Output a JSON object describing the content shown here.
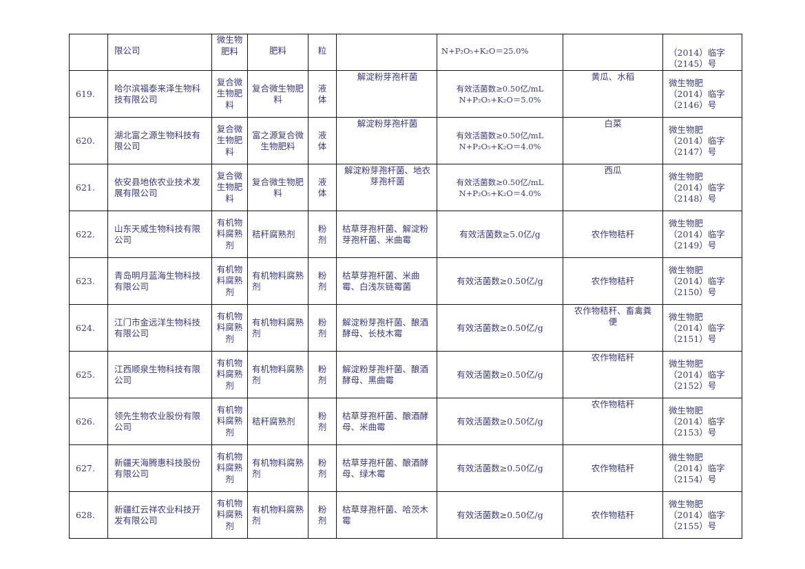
{
  "table": {
    "top_row": {
      "company": "限公司",
      "type": "微生物肥料",
      "name": "肥料",
      "form": "粒",
      "strain": "",
      "content": "N+P₂O₅+K₂O＝25.0%",
      "crop": "",
      "reg1": "（2014）临字",
      "reg2": "（2145）号"
    },
    "rows": [
      {
        "no": "619.",
        "company": "哈尔滨福泰来泽生物科技有限公司",
        "type": "复合微生物肥料",
        "name": "复合微生物肥料",
        "form": "液体",
        "strain": "解淀粉芽孢杆菌",
        "content1": "有效活菌数≥0.50亿/mL",
        "content2": "N+P₂O₅+K₂O＝5.0%",
        "crop": "黄瓜、水稻",
        "reg0": "微生物肥",
        "reg1": "（2014）临字",
        "reg2": "（2146）号"
      },
      {
        "no": "620.",
        "company": "湖北富之源生物科技有限公司",
        "type": "复合微生物肥料",
        "name": "富之源复合微生物肥料",
        "form": "液体",
        "strain": "解淀粉芽孢杆菌",
        "content1": "有效活菌数≥0.50亿/mL",
        "content2": "N+P₂O₅+K₂O＝4.0%",
        "crop": "白菜",
        "reg0": "微生物肥",
        "reg1": "（2014）临字",
        "reg2": "（2147）号"
      },
      {
        "no": "621.",
        "company": "依安县地依农业技术发展有限公司",
        "type": "复合微生物肥料",
        "name": "复合微生物肥料",
        "form": "液体",
        "strain": "解淀粉芽孢杆菌、地衣芽孢杆菌",
        "content1": "有效活菌数≥0.50亿/mL",
        "content2": "N+P₂O₅+K₂O＝4.0%",
        "crop": "西瓜",
        "reg0": "微生物肥",
        "reg1": "（2014）临字",
        "reg2": "（2148）号"
      },
      {
        "no": "622.",
        "company": "山东天威生物科技有限公司",
        "type": "有机物料腐熟剂",
        "name": "秸秆腐熟剂",
        "form": "粉剂",
        "strain": "枯草芽孢杆菌、解淀粉芽孢杆菌、米曲霉",
        "content1": "有效活菌数≥5.0亿/g",
        "crop": "农作物秸秆",
        "reg0": "微生物肥",
        "reg1": "（2014）临字",
        "reg2": "（2149）号"
      },
      {
        "no": "623.",
        "company": "青岛明月蓝海生物科技有限公司",
        "type": "有机物料腐熟剂",
        "name": "有机物料腐熟剂",
        "form": "粉剂",
        "strain": "枯草芽孢杆菌、米曲霉、白浅灰链霉菌",
        "content1": "有效活菌数≥0.50亿/g",
        "crop": "农作物秸秆",
        "reg0": "微生物肥",
        "reg1": "（2014）临字",
        "reg2": "（2150）号"
      },
      {
        "no": "624.",
        "company": "江门市金远洋生物科技有限公司",
        "type": "有机物料腐熟剂",
        "name": "有机物料腐熟剂",
        "form": "粉剂",
        "strain": "解淀粉芽孢杆菌、酿酒酵母、长枝木霉",
        "content1": "有效活菌数≥0.50亿/g",
        "crop": "农作物秸秆、畜禽粪便",
        "reg0": "微生物肥",
        "reg1": "（2014）临字",
        "reg2": "（2151）号"
      },
      {
        "no": "625.",
        "company": "江西顺泉生物科技有限公司",
        "type": "有机物料腐熟剂",
        "name": "有机物料腐熟剂",
        "form": "粉剂",
        "strain": "解淀粉芽孢杆菌、酿酒酵母、黑曲霉",
        "content1": "有效活菌数≥0.50亿/g",
        "crop": "农作物秸秆",
        "reg0": "微生物肥",
        "reg1": "（2014）临字",
        "reg2": "（2152）号"
      },
      {
        "no": "626.",
        "company": "领先生物农业股份有限公司",
        "type": "有机物料腐熟剂",
        "name": "秸秆腐熟剂",
        "form": "粉剂",
        "strain": "枯草芽孢杆菌、酿酒酵母、米曲霉",
        "content1": "有效活菌数≥0.50亿/g",
        "crop": "农作物秸秆",
        "reg0": "微生物肥",
        "reg1": "（2014）临字",
        "reg2": "（2153）号"
      },
      {
        "no": "627.",
        "company": "新疆天海腾惠科技股份有限公司",
        "type": "有机物料腐熟剂",
        "name": "有机物料腐熟剂",
        "form": "粉剂",
        "strain": "枯草芽孢杆菌、酿酒酵母、绿木霉",
        "content1": "有效活菌数≥0.50亿/g",
        "crop": "农作物秸秆",
        "reg0": "微生物肥",
        "reg1": "（2014）临字",
        "reg2": "（2154）号"
      },
      {
        "no": "628.",
        "company": "新疆红云祥农业科技开发有限公司",
        "type": "有机物料腐熟剂",
        "name": "有机物料腐熟剂",
        "form": "粉剂",
        "strain": "枯草芽孢杆菌、哈茨木霉",
        "content1": "有效活菌数≥0.50亿/g",
        "crop": "农作物秸秆",
        "reg0": "微生物肥",
        "reg1": "（2014）临字",
        "reg2": "（2155）号"
      }
    ]
  }
}
